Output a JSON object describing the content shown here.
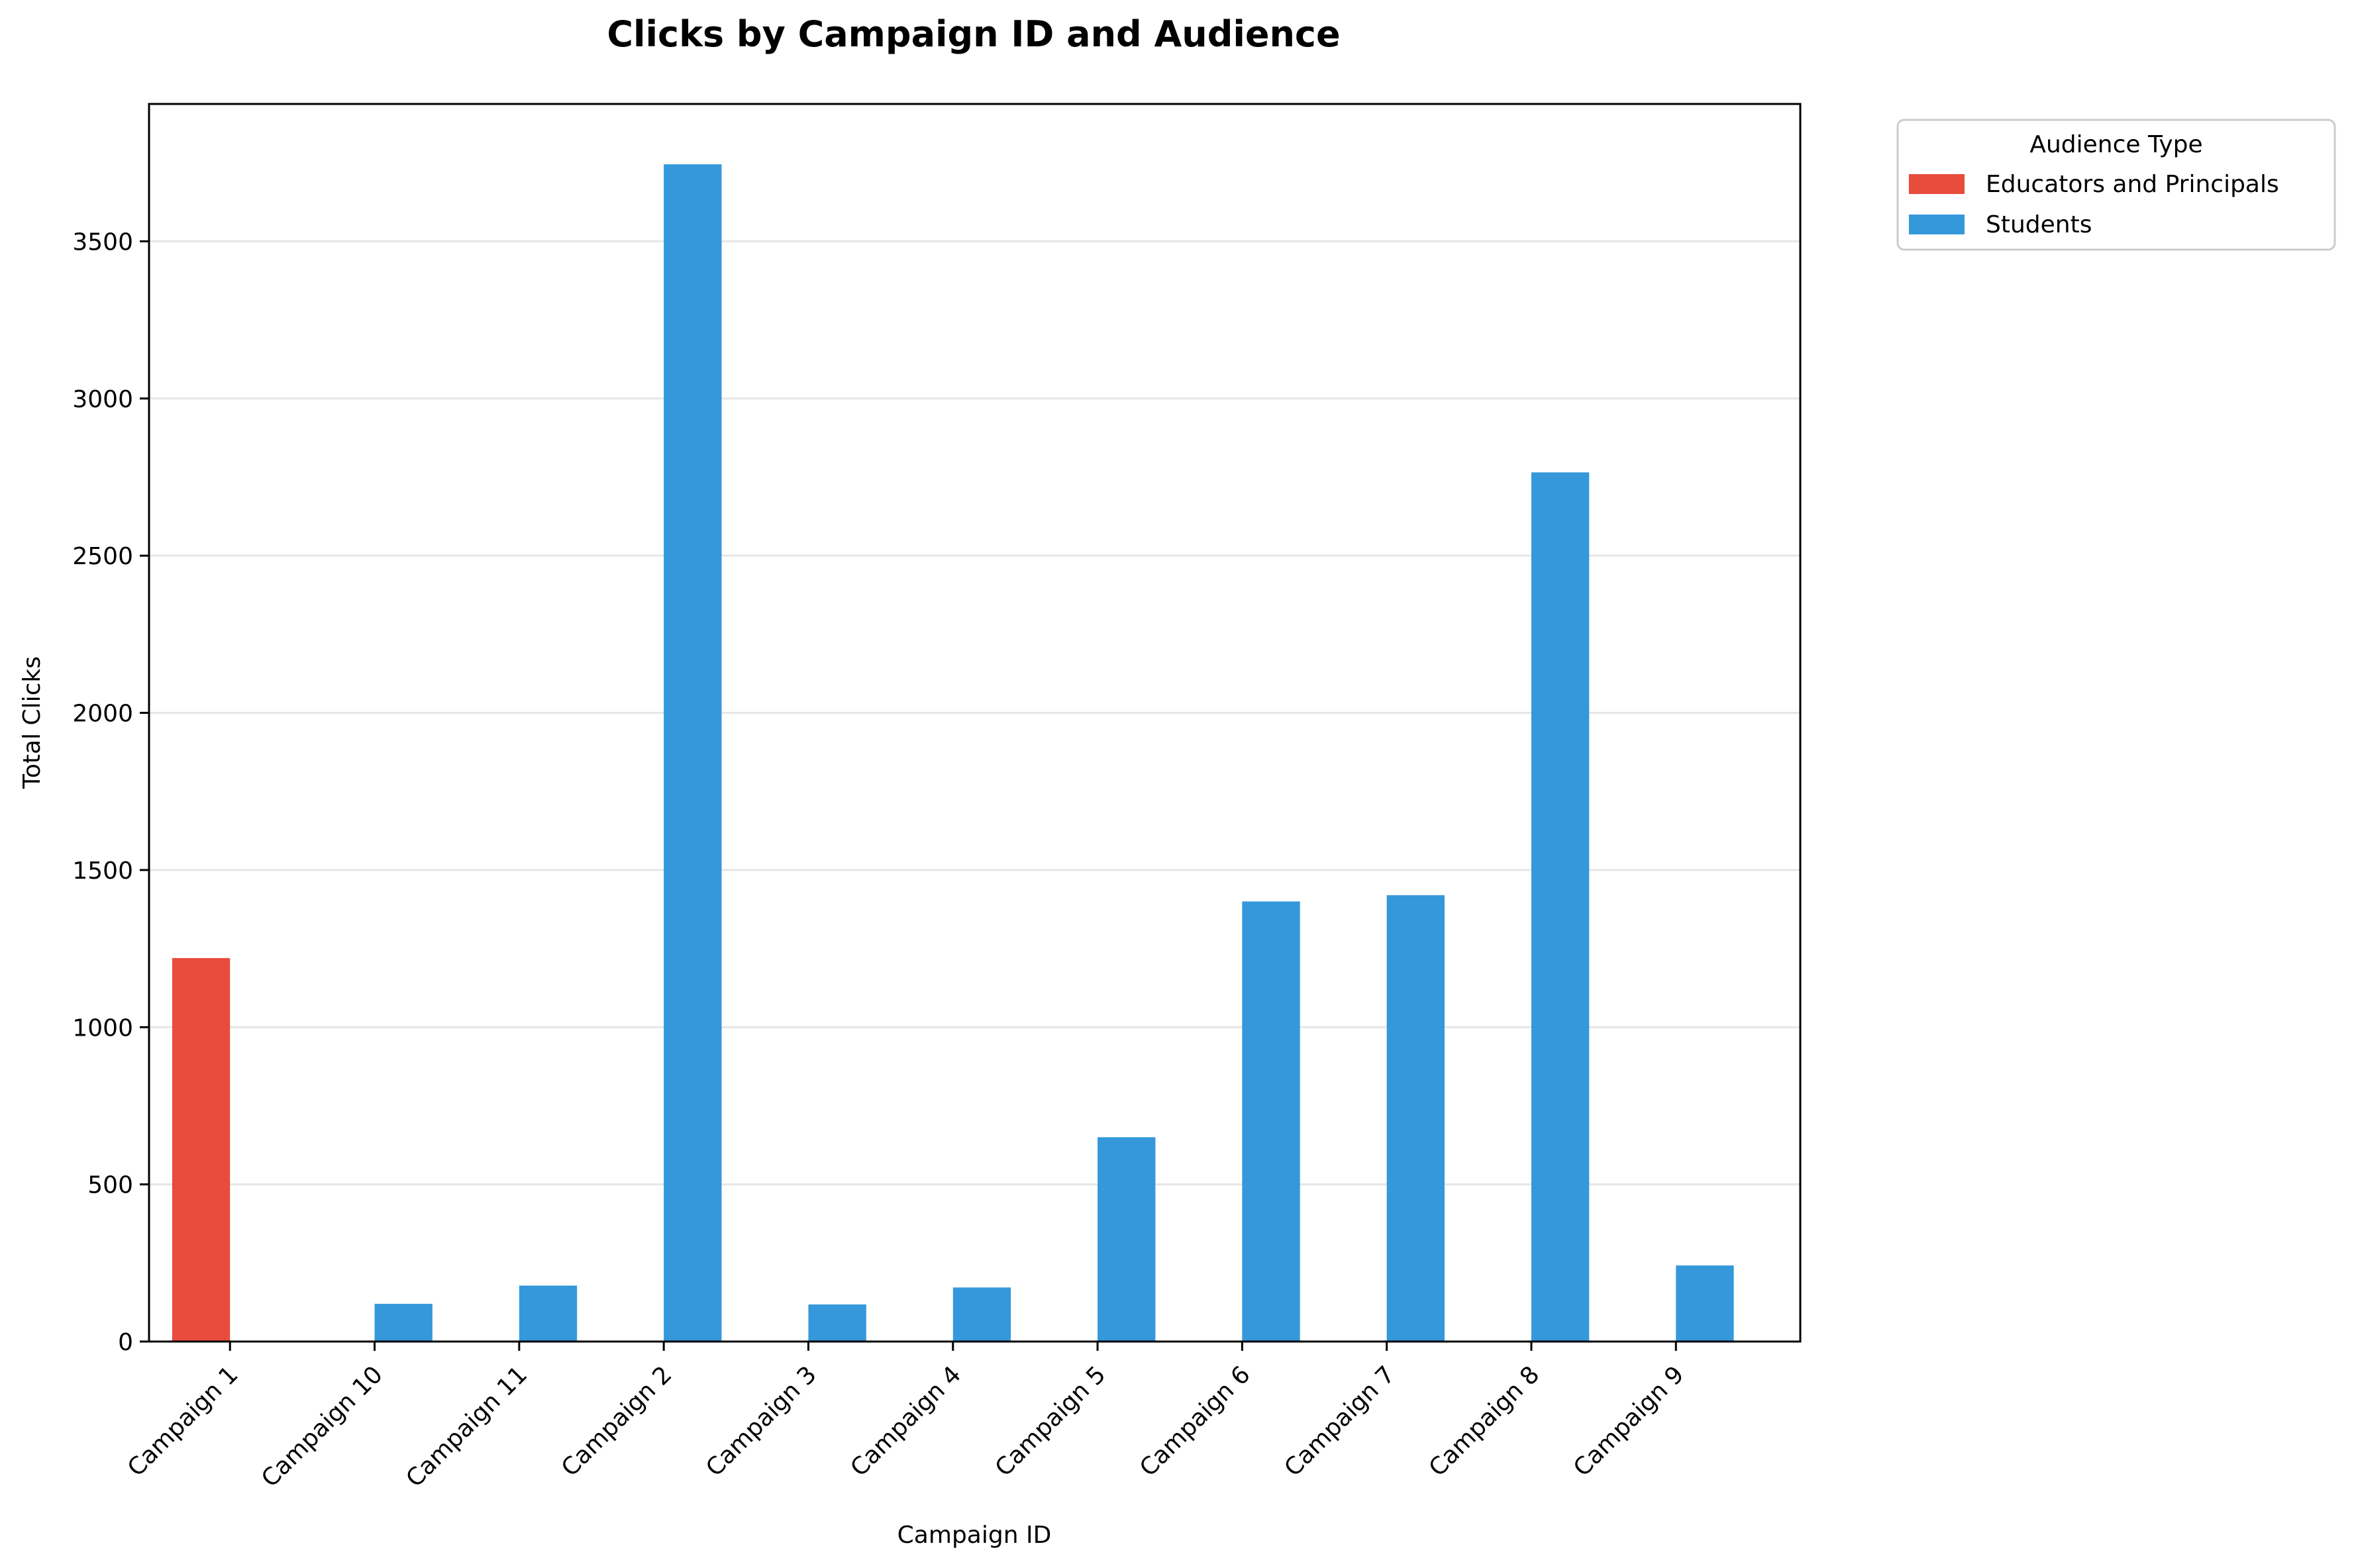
{
  "chart_data": {
    "type": "bar",
    "title": "Clicks by Campaign ID and Audience",
    "xlabel": "Campaign ID",
    "ylabel": "Total Clicks",
    "ylim": [
      0,
      3937
    ],
    "yticks": [
      0,
      500,
      1000,
      1500,
      2000,
      2500,
      3000,
      3500
    ],
    "grid": "horizontal",
    "legend": {
      "title": "Audience Type",
      "placement": "outside-top-right"
    },
    "categories": [
      "Campaign 1",
      "Campaign 10",
      "Campaign 11",
      "Campaign 2",
      "Campaign 3",
      "Campaign 4",
      "Campaign 5",
      "Campaign 6",
      "Campaign 7",
      "Campaign 8",
      "Campaign 9"
    ],
    "series": [
      {
        "name": "Educators and Principals",
        "color": "#e74c3c",
        "values": [
          1220,
          0,
          0,
          0,
          0,
          0,
          0,
          0,
          0,
          0,
          0
        ]
      },
      {
        "name": "Students",
        "color": "#3498db",
        "values": [
          0,
          120,
          178,
          3745,
          118,
          172,
          650,
          1400,
          1420,
          2765,
          242
        ]
      }
    ]
  }
}
